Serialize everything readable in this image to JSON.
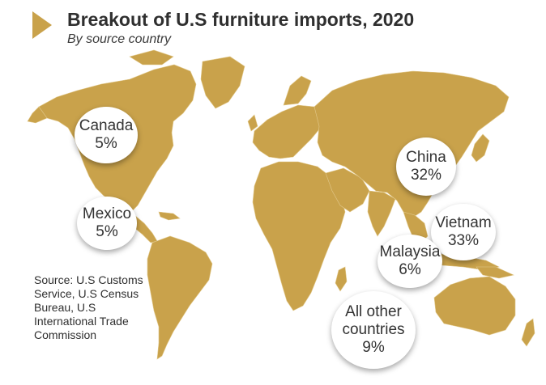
{
  "header": {
    "title": "Breakout of U.S furniture imports, 2020",
    "subtitle": "By source country"
  },
  "colors": {
    "land": "#c9a24b",
    "accent": "#c9a24b",
    "bubble": "#ffffff"
  },
  "countries": [
    {
      "name": "Canada",
      "share": "5%"
    },
    {
      "name": "Mexico",
      "share": "5%"
    },
    {
      "name": "China",
      "share": "32%"
    },
    {
      "name": "Vietnam",
      "share": "33%"
    },
    {
      "name": "Malaysia",
      "share": "6%"
    },
    {
      "name_lines": [
        "All other",
        "countries"
      ],
      "share": "9%"
    }
  ],
  "source": {
    "text": "Source: U.S Customs Service, U.S Census Bureau, U.S International Trade Commission"
  }
}
